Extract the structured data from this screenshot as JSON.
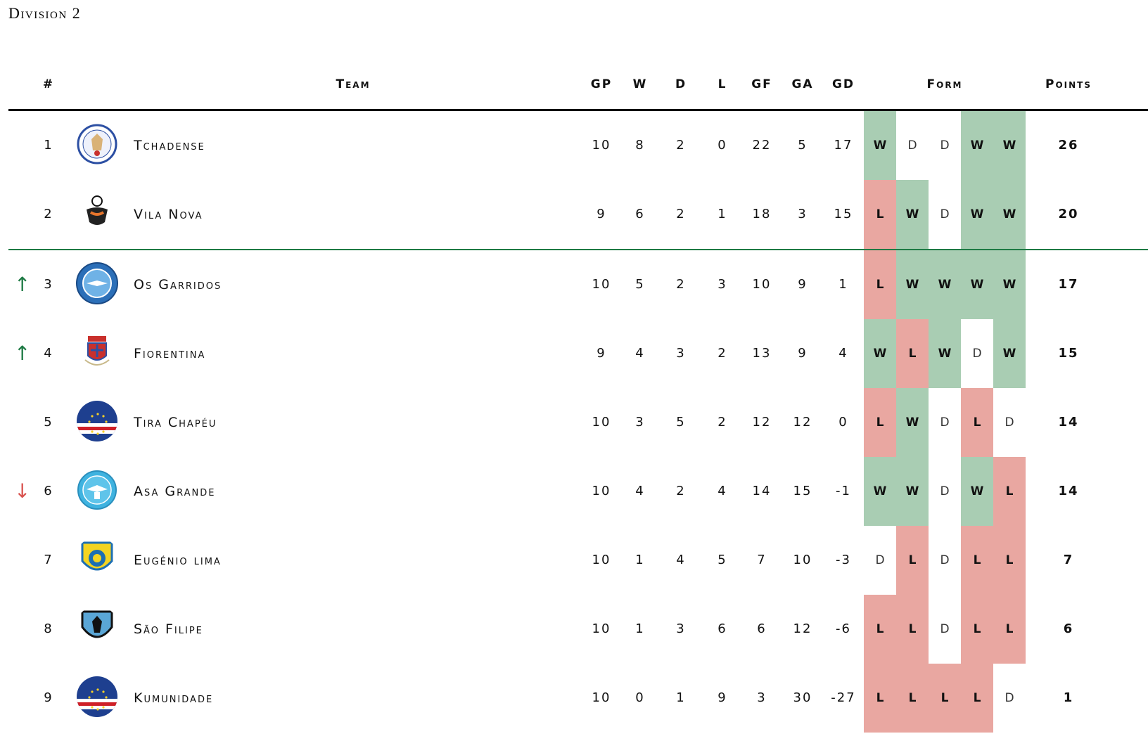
{
  "title": "Division 2",
  "headers": {
    "rank": "#",
    "team": "Team",
    "gp": "GP",
    "w": "W",
    "d": "D",
    "l": "L",
    "gf": "GF",
    "ga": "GA",
    "gd": "GD",
    "form": "Form",
    "points": "Points"
  },
  "colors": {
    "win": "#a9cdb3",
    "loss": "#e9a7a1",
    "promotion_line": "#1e7a44",
    "up_arrow": "#1e7a44",
    "down_arrow": "#d9534f"
  },
  "rows": [
    {
      "rank": "1",
      "arrow": "",
      "logo": "tchadense-logo",
      "team": "Tchadense",
      "gp": "10",
      "w": "8",
      "d": "2",
      "l": "0",
      "gf": "22",
      "ga": "5",
      "gd": "17",
      "form": [
        "W",
        "D",
        "D",
        "W",
        "W"
      ],
      "points": "26"
    },
    {
      "rank": "2",
      "arrow": "",
      "logo": "vila-nova-logo",
      "team": "Vila Nova",
      "gp": "9",
      "w": "6",
      "d": "2",
      "l": "1",
      "gf": "18",
      "ga": "3",
      "gd": "15",
      "form": [
        "L",
        "W",
        "D",
        "W",
        "W"
      ],
      "points": "20"
    },
    {
      "rank": "3",
      "arrow": "↑",
      "arrow_dir": "up",
      "logo": "os-garridos-logo",
      "team": "Os Garridos",
      "gp": "10",
      "w": "5",
      "d": "2",
      "l": "3",
      "gf": "10",
      "ga": "9",
      "gd": "1",
      "form": [
        "L",
        "W",
        "W",
        "W",
        "W"
      ],
      "points": "17"
    },
    {
      "rank": "4",
      "arrow": "↑",
      "arrow_dir": "up",
      "logo": "fiorentina-logo",
      "team": "Fiorentina",
      "gp": "9",
      "w": "4",
      "d": "3",
      "l": "2",
      "gf": "13",
      "ga": "9",
      "gd": "4",
      "form": [
        "W",
        "L",
        "W",
        "D",
        "W"
      ],
      "points": "15"
    },
    {
      "rank": "5",
      "arrow": "",
      "logo": "cape-verde-flag-logo",
      "team": "Tira Chapéu",
      "gp": "10",
      "w": "3",
      "d": "5",
      "l": "2",
      "gf": "12",
      "ga": "12",
      "gd": "0",
      "form": [
        "L",
        "W",
        "D",
        "L",
        "D"
      ],
      "points": "14"
    },
    {
      "rank": "6",
      "arrow": "↓",
      "arrow_dir": "down",
      "logo": "asa-grande-logo",
      "team": "Asa Grande",
      "gp": "10",
      "w": "4",
      "d": "2",
      "l": "4",
      "gf": "14",
      "ga": "15",
      "gd": "-1",
      "form": [
        "W",
        "W",
        "D",
        "W",
        "L"
      ],
      "points": "14"
    },
    {
      "rank": "7",
      "arrow": "",
      "logo": "eugenio-lima-logo",
      "team": "Eugénio lima",
      "gp": "10",
      "w": "1",
      "d": "4",
      "l": "5",
      "gf": "7",
      "ga": "10",
      "gd": "-3",
      "form": [
        "D",
        "L",
        "D",
        "L",
        "L"
      ],
      "points": "7"
    },
    {
      "rank": "8",
      "arrow": "",
      "logo": "sao-filipe-logo",
      "team": "São Filipe",
      "gp": "10",
      "w": "1",
      "d": "3",
      "l": "6",
      "gf": "6",
      "ga": "12",
      "gd": "-6",
      "form": [
        "L",
        "L",
        "D",
        "L",
        "L"
      ],
      "points": "6"
    },
    {
      "rank": "9",
      "arrow": "",
      "logo": "cape-verde-flag-logo",
      "team": "Kumunidade",
      "gp": "10",
      "w": "0",
      "d": "1",
      "l": "9",
      "gf": "3",
      "ga": "30",
      "gd": "-27",
      "form": [
        "L",
        "L",
        "L",
        "L",
        "D"
      ],
      "points": "1"
    }
  ]
}
